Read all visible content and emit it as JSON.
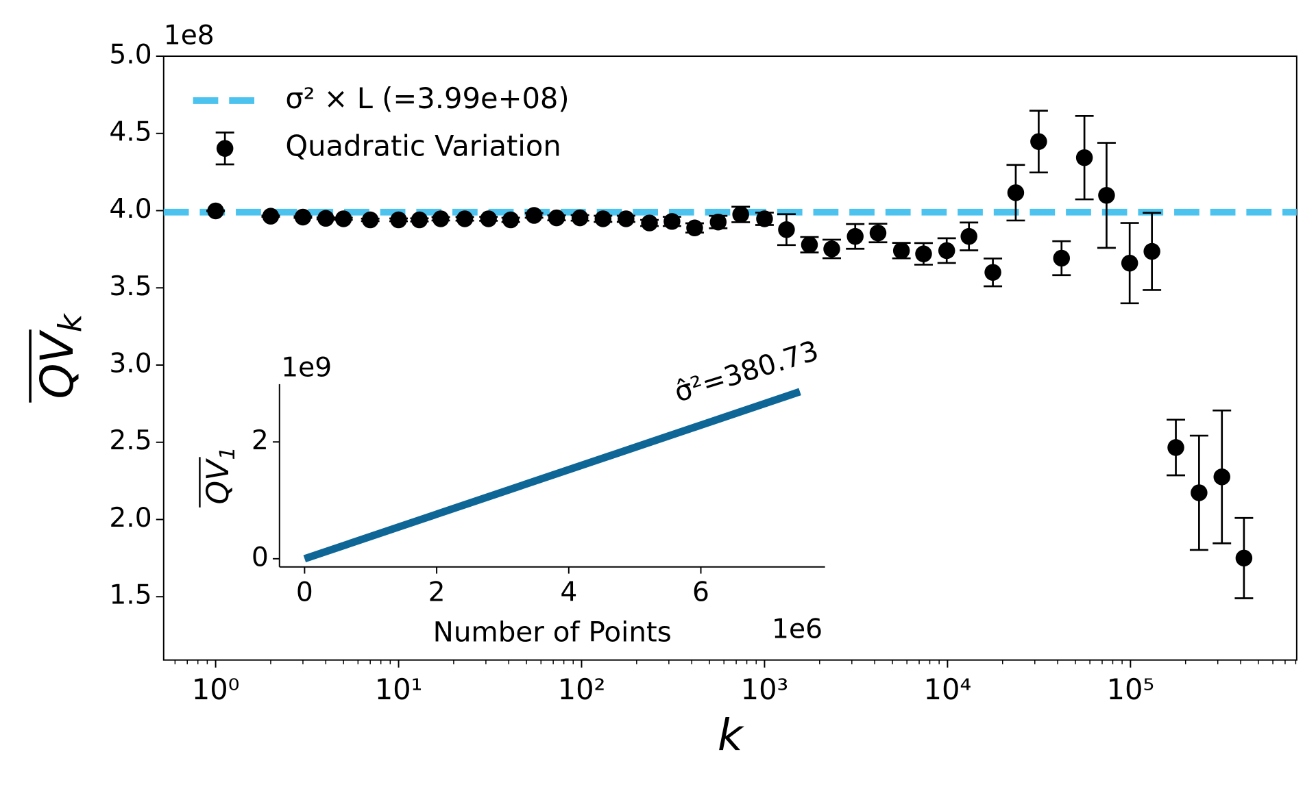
{
  "chart_data": [
    {
      "type": "errorbar",
      "y_offset": "1e8",
      "ylabel": {
        "main": "QV",
        "sub": "k"
      },
      "xlabel": "k",
      "log_x": true,
      "xlim": [
        0.52,
        810000
      ],
      "xticks": [
        {
          "value": 1,
          "label": "10⁰"
        },
        {
          "value": 10,
          "label": "10¹"
        },
        {
          "value": 100,
          "label": "10²"
        },
        {
          "value": 1000,
          "label": "10³"
        },
        {
          "value": 10000,
          "label": "10⁴"
        },
        {
          "value": 100000,
          "label": "10⁵"
        }
      ],
      "ylim": [
        1.09,
        5.0
      ],
      "yticks": [
        1.5,
        {
          "value": 2,
          "label": "2.0"
        },
        2.5,
        {
          "value": 3,
          "label": "3.0"
        },
        3.5,
        {
          "value": 4,
          "label": "4.0"
        },
        4.5,
        {
          "value": 5,
          "label": "5.0"
        }
      ],
      "legend": "upper left",
      "series": [
        {
          "name": "σ² × L  (=3.99e+08)",
          "type": "hline",
          "color": "#4cc3ee",
          "dashed": true,
          "value": 3.99
        },
        {
          "name": "Quadratic Variation",
          "type": "errorbar",
          "color": "#000000",
          "x": [
            1,
            2,
            3,
            4,
            5,
            7,
            10,
            13,
            17,
            23,
            31,
            41,
            55,
            73,
            98,
            131,
            175,
            235,
            312,
            415,
            558,
            741,
            1000,
            1318,
            1760,
            2330,
            3130,
            4170,
            5600,
            7400,
            9900,
            13100,
            17700,
            23600,
            31500,
            42000,
            56000,
            74000,
            99000,
            131000,
            177000,
            237000,
            316000,
            417000
          ],
          "values": [
            3.998,
            3.964,
            3.958,
            3.95,
            3.947,
            3.94,
            3.94,
            3.94,
            3.947,
            3.947,
            3.947,
            3.94,
            3.969,
            3.953,
            3.953,
            3.947,
            3.947,
            3.92,
            3.93,
            3.888,
            3.926,
            3.975,
            3.947,
            3.877,
            3.779,
            3.752,
            3.833,
            3.855,
            3.741,
            3.72,
            3.741,
            3.833,
            3.6,
            4.116,
            4.447,
            3.692,
            4.343,
            4.099,
            3.66,
            3.736,
            2.466,
            2.173,
            2.276,
            1.75
          ],
          "errors": [
            0.002,
            0.004,
            0.005,
            0.006,
            0.007,
            0.008,
            0.009,
            0.01,
            0.011,
            0.012,
            0.013,
            0.014,
            0.015,
            0.016,
            0.018,
            0.02,
            0.02,
            0.02,
            0.03,
            0.03,
            0.04,
            0.05,
            0.04,
            0.1,
            0.05,
            0.06,
            0.08,
            0.06,
            0.05,
            0.07,
            0.08,
            0.09,
            0.09,
            0.18,
            0.2,
            0.11,
            0.27,
            0.34,
            0.26,
            0.25,
            0.18,
            0.37,
            0.43,
            0.26
          ]
        }
      ]
    },
    {
      "type": "line",
      "y_offset": "1e9",
      "x_offset": "1e6",
      "xlabel": "Number of Points",
      "ylabel": {
        "main": "QV",
        "sub": "1"
      },
      "annotation": "σ̂²=380.73",
      "xlim": [
        -0.38,
        7.88
      ],
      "xticks": [
        0,
        2,
        4,
        6
      ],
      "ylim": [
        -0.14,
        2.99
      ],
      "yticks": [
        0,
        2
      ],
      "color": "#0d6696",
      "x": [
        0,
        7.5
      ],
      "values": [
        0,
        2.86
      ]
    }
  ]
}
